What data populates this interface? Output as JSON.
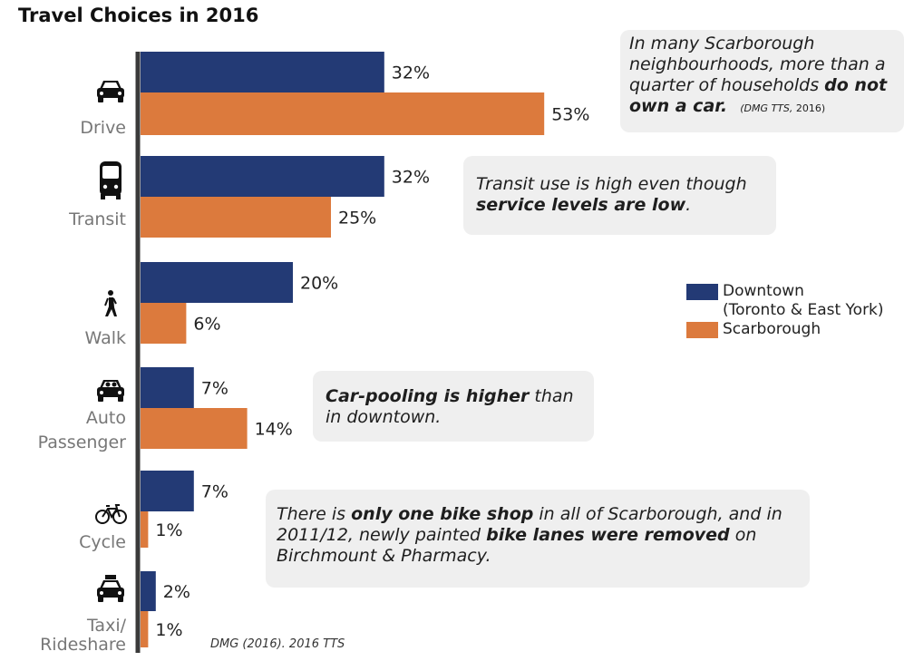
{
  "title": "Travel Choices in 2016",
  "colors": {
    "downtown": "#233a75",
    "scarborough": "#dc7a3d",
    "axis": "#3a3a3a",
    "label": "#777777"
  },
  "chart_data": {
    "type": "bar",
    "orientation": "horizontal",
    "title": "Travel Choices in 2016",
    "categories": [
      "Drive",
      "Transit",
      "Walk",
      "Auto Passenger",
      "Cycle",
      "Taxi/ Rideshare"
    ],
    "category_lines": [
      [
        "Drive"
      ],
      [
        "Transit"
      ],
      [
        "Walk"
      ],
      [
        "Auto",
        "Passenger"
      ],
      [
        "Cycle"
      ],
      [
        "Taxi/",
        "Rideshare"
      ]
    ],
    "category_icons": [
      "car-icon",
      "bus-icon",
      "pedestrian-icon",
      "car-passengers-icon",
      "bicycle-icon",
      "taxi-icon"
    ],
    "series": [
      {
        "name": "Downtown (Toronto & East York)",
        "values": [
          32,
          32,
          20,
          7,
          7,
          2
        ],
        "labels": [
          "32%",
          "32%",
          "20%",
          "7%",
          "7%",
          "2%"
        ]
      },
      {
        "name": "Scarborough",
        "values": [
          53,
          25,
          6,
          14,
          1,
          1
        ],
        "labels": [
          "53%",
          "25%",
          "6%",
          "14%",
          "1%",
          "1%"
        ]
      }
    ],
    "unit": "%",
    "xlim": [
      0,
      60
    ]
  },
  "legend": {
    "downtown_line1": "Downtown",
    "downtown_line2": "(Toronto & East York)",
    "scarborough": "Scarborough"
  },
  "notes": {
    "car": {
      "t1": "In many Scarborough neighbourhoods, more than a quarter of households ",
      "b1": "do not own a car.",
      "src_a": "(DMG TTS,",
      "src_b": " 2016)"
    },
    "transit": {
      "t1": "Transit use is high even though ",
      "b1": "service levels are low",
      "t2": "."
    },
    "carpool": {
      "b1": "Car-pooling is higher",
      "t1": " than in downtown."
    },
    "bike": {
      "t1": "There is ",
      "b1": "only one bike shop",
      "t2": " in all of Scarborough, and in 2011/12, newly painted ",
      "b2": "bike lanes were removed",
      "t3": " on Birchmount & Pharmacy."
    }
  },
  "source": "DMG (2016). 2016 TTS"
}
